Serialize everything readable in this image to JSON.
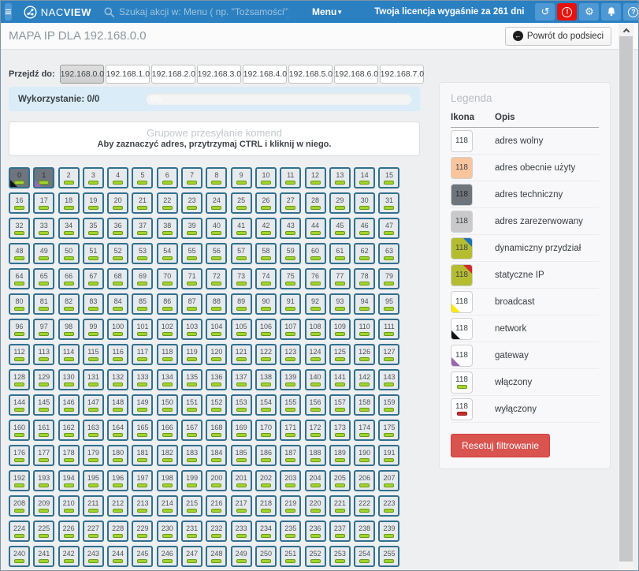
{
  "topbar": {
    "brand_nac": "NAC",
    "brand_view": "VIEW",
    "search_placeholder": "Szukaj akcji w: Menu ( np. \"Tożsamości\")",
    "menu_label": "Menu",
    "license_text": "Twoja licencja wygaśnie za 261 dni"
  },
  "icons": {
    "hamburger": "≡",
    "caret_down": "▼",
    "back_arrow": "←",
    "refresh": "↺",
    "alert": "!",
    "gear": "⚙",
    "help": "?"
  },
  "header": {
    "title": "MAPA IP DLA 192.168.0.0",
    "back_label": "Powrót do podsieci"
  },
  "subnets": {
    "label": "Przejdź do:",
    "active_index": 0,
    "items": [
      "192.168.0.0",
      "192.168.1.0",
      "192.168.2.0",
      "192.168.3.0",
      "192.168.4.0",
      "192.168.5.0",
      "192.168.6.0",
      "192.168.7.0"
    ]
  },
  "usage": {
    "label": "Wykorzystanie: 0/0",
    "percent": 0,
    "percent_label": "0%"
  },
  "group_box": {
    "title": "Grupowe przesyłanie komend",
    "hint": "Aby zaznaczyć adres, przytrzymaj CTRL i kliknij w niego."
  },
  "grid": {
    "columns": 16,
    "start": 0,
    "end": 255,
    "default_indicator": "on",
    "special": {
      "0": {
        "status": "technical",
        "corner": "network"
      },
      "1": {
        "status": "technical",
        "corner": "gateway"
      }
    }
  },
  "legend": {
    "title": "Legenda",
    "columns": [
      "Ikona",
      "Opis"
    ],
    "sample_number": "118",
    "rows": [
      {
        "type": "free",
        "label": "adres wolny"
      },
      {
        "type": "used",
        "label": "adres obecnie użyty"
      },
      {
        "type": "technical",
        "label": "adres techniczny"
      },
      {
        "type": "reserved",
        "label": "adres zarezerwowany"
      },
      {
        "type": "dynamic",
        "label": "dynamiczny przydział"
      },
      {
        "type": "static",
        "label": "statyczne IP"
      },
      {
        "type": "broadcast",
        "label": "broadcast"
      },
      {
        "type": "network",
        "label": "network"
      },
      {
        "type": "gateway",
        "label": "gateway"
      },
      {
        "type": "on",
        "label": "włączony"
      },
      {
        "type": "off",
        "label": "wyłączony"
      }
    ],
    "reset_label": "Resetuj filtrowanie"
  },
  "colors": {
    "topbar_bg": "#2b80c1",
    "topbar_button": "#4e99d4",
    "alert_red": "#e8120d",
    "page_bg": "#edeff1",
    "panel_border": "#e2e4e6",
    "cell_border": "#31708f",
    "cell_bg": "#e7eaec",
    "technical_gray": "#6e757c",
    "reserved_gray": "#c9c9c9",
    "used_orange": "#fac49c",
    "assignment_olive": "#b4bd2f",
    "network_black": "#141414",
    "gateway_purple": "#9a68b2",
    "broadcast_yellow": "#ffe800",
    "dynamic_blue": "#1e72b8",
    "static_red": "#d6272e",
    "on_green": "#a4d42b",
    "on_green_border": "#649a1a",
    "off_red": "#cf2929",
    "off_red_border": "#8f1d1d",
    "usage_blue": "#d9ecf7",
    "reset_red": "#d9534f"
  }
}
